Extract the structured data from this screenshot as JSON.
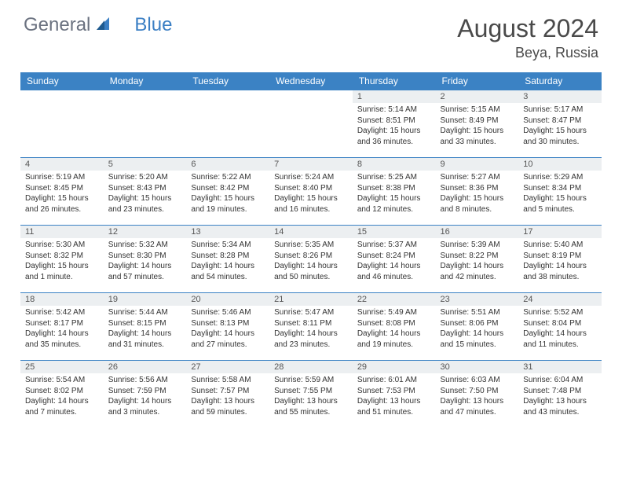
{
  "logo": {
    "text1": "General",
    "text2": "Blue"
  },
  "title": "August 2024",
  "location": "Beya, Russia",
  "colors": {
    "header_bg": "#3b82c4",
    "header_text": "#ffffff",
    "daynum_bg": "#eceff1",
    "border": "#3b82c4",
    "logo_gray": "#6b7280",
    "logo_blue": "#3b7fc4"
  },
  "day_headers": [
    "Sunday",
    "Monday",
    "Tuesday",
    "Wednesday",
    "Thursday",
    "Friday",
    "Saturday"
  ],
  "weeks": [
    [
      {
        "empty": true
      },
      {
        "empty": true
      },
      {
        "empty": true
      },
      {
        "empty": true
      },
      {
        "n": "1",
        "sunrise": "Sunrise: 5:14 AM",
        "sunset": "Sunset: 8:51 PM",
        "daylight": "Daylight: 15 hours and 36 minutes."
      },
      {
        "n": "2",
        "sunrise": "Sunrise: 5:15 AM",
        "sunset": "Sunset: 8:49 PM",
        "daylight": "Daylight: 15 hours and 33 minutes."
      },
      {
        "n": "3",
        "sunrise": "Sunrise: 5:17 AM",
        "sunset": "Sunset: 8:47 PM",
        "daylight": "Daylight: 15 hours and 30 minutes."
      }
    ],
    [
      {
        "n": "4",
        "sunrise": "Sunrise: 5:19 AM",
        "sunset": "Sunset: 8:45 PM",
        "daylight": "Daylight: 15 hours and 26 minutes."
      },
      {
        "n": "5",
        "sunrise": "Sunrise: 5:20 AM",
        "sunset": "Sunset: 8:43 PM",
        "daylight": "Daylight: 15 hours and 23 minutes."
      },
      {
        "n": "6",
        "sunrise": "Sunrise: 5:22 AM",
        "sunset": "Sunset: 8:42 PM",
        "daylight": "Daylight: 15 hours and 19 minutes."
      },
      {
        "n": "7",
        "sunrise": "Sunrise: 5:24 AM",
        "sunset": "Sunset: 8:40 PM",
        "daylight": "Daylight: 15 hours and 16 minutes."
      },
      {
        "n": "8",
        "sunrise": "Sunrise: 5:25 AM",
        "sunset": "Sunset: 8:38 PM",
        "daylight": "Daylight: 15 hours and 12 minutes."
      },
      {
        "n": "9",
        "sunrise": "Sunrise: 5:27 AM",
        "sunset": "Sunset: 8:36 PM",
        "daylight": "Daylight: 15 hours and 8 minutes."
      },
      {
        "n": "10",
        "sunrise": "Sunrise: 5:29 AM",
        "sunset": "Sunset: 8:34 PM",
        "daylight": "Daylight: 15 hours and 5 minutes."
      }
    ],
    [
      {
        "n": "11",
        "sunrise": "Sunrise: 5:30 AM",
        "sunset": "Sunset: 8:32 PM",
        "daylight": "Daylight: 15 hours and 1 minute."
      },
      {
        "n": "12",
        "sunrise": "Sunrise: 5:32 AM",
        "sunset": "Sunset: 8:30 PM",
        "daylight": "Daylight: 14 hours and 57 minutes."
      },
      {
        "n": "13",
        "sunrise": "Sunrise: 5:34 AM",
        "sunset": "Sunset: 8:28 PM",
        "daylight": "Daylight: 14 hours and 54 minutes."
      },
      {
        "n": "14",
        "sunrise": "Sunrise: 5:35 AM",
        "sunset": "Sunset: 8:26 PM",
        "daylight": "Daylight: 14 hours and 50 minutes."
      },
      {
        "n": "15",
        "sunrise": "Sunrise: 5:37 AM",
        "sunset": "Sunset: 8:24 PM",
        "daylight": "Daylight: 14 hours and 46 minutes."
      },
      {
        "n": "16",
        "sunrise": "Sunrise: 5:39 AM",
        "sunset": "Sunset: 8:22 PM",
        "daylight": "Daylight: 14 hours and 42 minutes."
      },
      {
        "n": "17",
        "sunrise": "Sunrise: 5:40 AM",
        "sunset": "Sunset: 8:19 PM",
        "daylight": "Daylight: 14 hours and 38 minutes."
      }
    ],
    [
      {
        "n": "18",
        "sunrise": "Sunrise: 5:42 AM",
        "sunset": "Sunset: 8:17 PM",
        "daylight": "Daylight: 14 hours and 35 minutes."
      },
      {
        "n": "19",
        "sunrise": "Sunrise: 5:44 AM",
        "sunset": "Sunset: 8:15 PM",
        "daylight": "Daylight: 14 hours and 31 minutes."
      },
      {
        "n": "20",
        "sunrise": "Sunrise: 5:46 AM",
        "sunset": "Sunset: 8:13 PM",
        "daylight": "Daylight: 14 hours and 27 minutes."
      },
      {
        "n": "21",
        "sunrise": "Sunrise: 5:47 AM",
        "sunset": "Sunset: 8:11 PM",
        "daylight": "Daylight: 14 hours and 23 minutes."
      },
      {
        "n": "22",
        "sunrise": "Sunrise: 5:49 AM",
        "sunset": "Sunset: 8:08 PM",
        "daylight": "Daylight: 14 hours and 19 minutes."
      },
      {
        "n": "23",
        "sunrise": "Sunrise: 5:51 AM",
        "sunset": "Sunset: 8:06 PM",
        "daylight": "Daylight: 14 hours and 15 minutes."
      },
      {
        "n": "24",
        "sunrise": "Sunrise: 5:52 AM",
        "sunset": "Sunset: 8:04 PM",
        "daylight": "Daylight: 14 hours and 11 minutes."
      }
    ],
    [
      {
        "n": "25",
        "sunrise": "Sunrise: 5:54 AM",
        "sunset": "Sunset: 8:02 PM",
        "daylight": "Daylight: 14 hours and 7 minutes."
      },
      {
        "n": "26",
        "sunrise": "Sunrise: 5:56 AM",
        "sunset": "Sunset: 7:59 PM",
        "daylight": "Daylight: 14 hours and 3 minutes."
      },
      {
        "n": "27",
        "sunrise": "Sunrise: 5:58 AM",
        "sunset": "Sunset: 7:57 PM",
        "daylight": "Daylight: 13 hours and 59 minutes."
      },
      {
        "n": "28",
        "sunrise": "Sunrise: 5:59 AM",
        "sunset": "Sunset: 7:55 PM",
        "daylight": "Daylight: 13 hours and 55 minutes."
      },
      {
        "n": "29",
        "sunrise": "Sunrise: 6:01 AM",
        "sunset": "Sunset: 7:53 PM",
        "daylight": "Daylight: 13 hours and 51 minutes."
      },
      {
        "n": "30",
        "sunrise": "Sunrise: 6:03 AM",
        "sunset": "Sunset: 7:50 PM",
        "daylight": "Daylight: 13 hours and 47 minutes."
      },
      {
        "n": "31",
        "sunrise": "Sunrise: 6:04 AM",
        "sunset": "Sunset: 7:48 PM",
        "daylight": "Daylight: 13 hours and 43 minutes."
      }
    ]
  ]
}
